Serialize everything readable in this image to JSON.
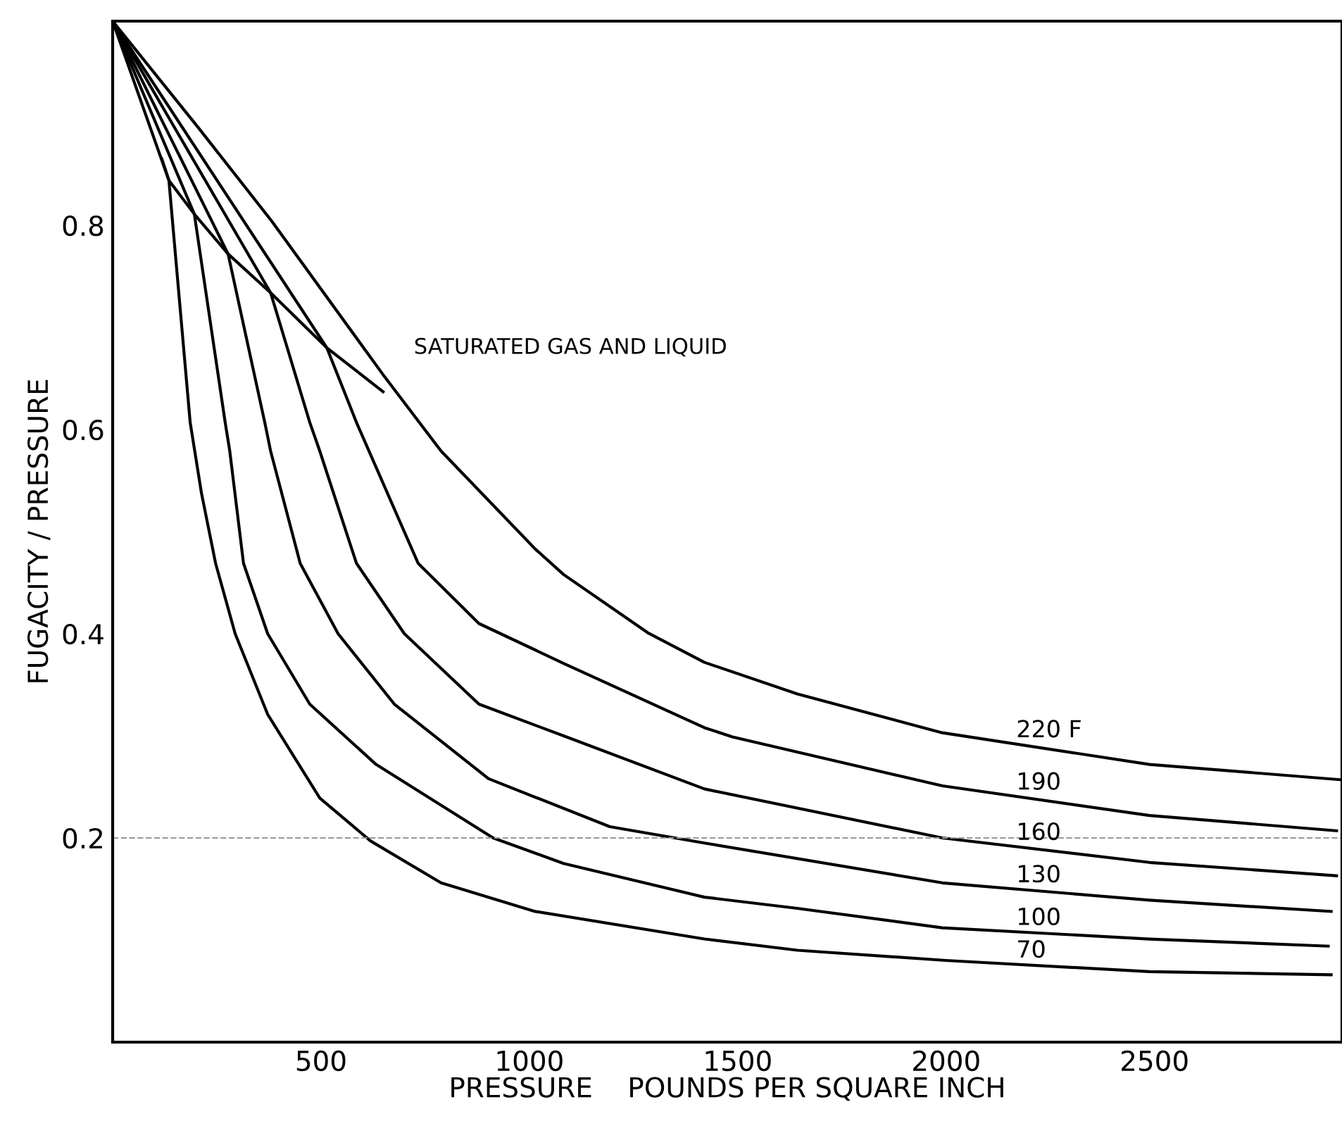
{
  "chart_data": {
    "type": "line",
    "xlabel": "PRESSURE    POUNDS PER SQUARE INCH",
    "ylabel": "FUGACITY / PRESSURE",
    "xlim": [
      0,
      2950
    ],
    "ylim": [
      0,
      1.0
    ],
    "xticks": [
      500,
      1000,
      1500,
      2000,
      2500
    ],
    "yticks": [
      0.2,
      0.4,
      0.6,
      0.8
    ],
    "grid": false,
    "marker": "none",
    "line_style": "solid",
    "ref_lines": [
      {
        "axis": "y",
        "value": 0.2,
        "color": "#999999",
        "line_style": "dashed"
      }
    ],
    "annotations": [
      "SATURATED GAS AND LIQUID"
    ],
    "series": [
      {
        "name": "220 F",
        "color": "#000000",
        "x": [
          0,
          203,
          382,
          652,
          788,
          1014,
          1082,
          1284,
          1420,
          1643,
          1991,
          2488,
          2947
        ],
        "values": [
          1.0,
          0.897,
          0.804,
          0.652,
          0.579,
          0.483,
          0.458,
          0.401,
          0.372,
          0.341,
          0.303,
          0.272,
          0.257
        ]
      },
      {
        "name": "190",
        "color": "#000000",
        "x": [
          0,
          514,
          585,
          615,
          733,
          879,
          1082,
          1420,
          1487,
          1991,
          2488,
          2937
        ],
        "values": [
          1.0,
          0.68,
          0.607,
          0.579,
          0.469,
          0.41,
          0.371,
          0.308,
          0.299,
          0.251,
          0.222,
          0.207
        ]
      },
      {
        "name": "160",
        "color": "#000000",
        "x": [
          0,
          379,
          473,
          497,
          585,
          700,
          879,
          1082,
          1420,
          1991,
          2488,
          2937
        ],
        "values": [
          1.0,
          0.734,
          0.607,
          0.579,
          0.469,
          0.4,
          0.331,
          0.3,
          0.248,
          0.2,
          0.176,
          0.163
        ]
      },
      {
        "name": "130",
        "color": "#000000",
        "x": [
          0,
          277,
          365,
          379,
          450,
          541,
          676,
          902,
          1193,
          1420,
          1991,
          2488,
          2924
        ],
        "values": [
          1.0,
          0.772,
          0.607,
          0.579,
          0.469,
          0.4,
          0.331,
          0.258,
          0.211,
          0.195,
          0.156,
          0.139,
          0.128
        ]
      },
      {
        "name": "100",
        "color": "#000000",
        "x": [
          0,
          196,
          270,
          281,
          314,
          372,
          473,
          632,
          913,
          1082,
          1420,
          1643,
          1991,
          2488,
          2917
        ],
        "values": [
          1.0,
          0.811,
          0.607,
          0.579,
          0.469,
          0.4,
          0.331,
          0.272,
          0.2,
          0.175,
          0.142,
          0.131,
          0.112,
          0.101,
          0.094
        ]
      },
      {
        "name": "70",
        "color": "#000000",
        "x": [
          0,
          135,
          186,
          213,
          247,
          294,
          372,
          497,
          619,
          788,
          1014,
          1420,
          1643,
          2000,
          2488,
          2924
        ],
        "values": [
          1.0,
          0.844,
          0.607,
          0.538,
          0.469,
          0.4,
          0.321,
          0.239,
          0.197,
          0.156,
          0.128,
          0.101,
          0.09,
          0.08,
          0.069,
          0.066
        ]
      },
      {
        "color": "#000000",
        "x": [
          118,
          135,
          196,
          277,
          379,
          514,
          649
        ],
        "values": [
          0.865,
          0.844,
          0.811,
          0.772,
          0.734,
          0.68,
          0.637
        ]
      }
    ]
  }
}
